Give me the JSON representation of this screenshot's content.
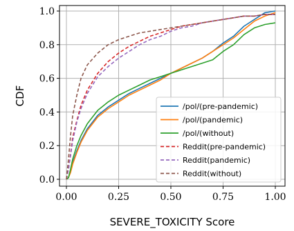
{
  "chart_data": {
    "type": "line",
    "xlabel": "SEVERE_TOXICITY Score",
    "ylabel": "CDF",
    "xlim": [
      0,
      1
    ],
    "ylim": [
      0,
      1
    ],
    "xticks": [
      "0.00",
      "0.25",
      "0.50",
      "0.75",
      "1.00"
    ],
    "yticks": [
      "0.0",
      "0.2",
      "0.4",
      "0.6",
      "0.8",
      "1.0"
    ],
    "grid": true,
    "legend_position": "lower-right",
    "series": [
      {
        "name": "/pol/(pre-pandemic)",
        "color": "#1f77b4",
        "dash": "solid",
        "points": [
          [
            0,
            0
          ],
          [
            0.01,
            0.01
          ],
          [
            0.02,
            0.05
          ],
          [
            0.03,
            0.1
          ],
          [
            0.05,
            0.17
          ],
          [
            0.07,
            0.23
          ],
          [
            0.1,
            0.3
          ],
          [
            0.15,
            0.38
          ],
          [
            0.2,
            0.43
          ],
          [
            0.25,
            0.47
          ],
          [
            0.3,
            0.51
          ],
          [
            0.35,
            0.54
          ],
          [
            0.4,
            0.57
          ],
          [
            0.45,
            0.6
          ],
          [
            0.5,
            0.63
          ],
          [
            0.55,
            0.66
          ],
          [
            0.6,
            0.69
          ],
          [
            0.65,
            0.72
          ],
          [
            0.7,
            0.76
          ],
          [
            0.75,
            0.81
          ],
          [
            0.8,
            0.85
          ],
          [
            0.85,
            0.91
          ],
          [
            0.9,
            0.95
          ],
          [
            0.95,
            0.99
          ],
          [
            1,
            1
          ]
        ]
      },
      {
        "name": "/pol/(pandemic)",
        "color": "#ff7f0e",
        "dash": "solid",
        "points": [
          [
            0,
            0
          ],
          [
            0.01,
            0.01
          ],
          [
            0.02,
            0.04
          ],
          [
            0.03,
            0.09
          ],
          [
            0.05,
            0.16
          ],
          [
            0.07,
            0.22
          ],
          [
            0.1,
            0.29
          ],
          [
            0.15,
            0.37
          ],
          [
            0.2,
            0.42
          ],
          [
            0.25,
            0.46
          ],
          [
            0.3,
            0.5
          ],
          [
            0.35,
            0.53
          ],
          [
            0.4,
            0.56
          ],
          [
            0.45,
            0.59
          ],
          [
            0.5,
            0.63
          ],
          [
            0.55,
            0.66
          ],
          [
            0.6,
            0.69
          ],
          [
            0.65,
            0.72
          ],
          [
            0.7,
            0.76
          ],
          [
            0.75,
            0.8
          ],
          [
            0.8,
            0.84
          ],
          [
            0.85,
            0.89
          ],
          [
            0.9,
            0.94
          ],
          [
            0.95,
            0.97
          ],
          [
            1,
            0.99
          ]
        ]
      },
      {
        "name": "/pol/(without)",
        "color": "#2ca02c",
        "dash": "solid",
        "points": [
          [
            0,
            0
          ],
          [
            0.01,
            0.01
          ],
          [
            0.02,
            0.06
          ],
          [
            0.03,
            0.12
          ],
          [
            0.05,
            0.2
          ],
          [
            0.07,
            0.26
          ],
          [
            0.1,
            0.33
          ],
          [
            0.15,
            0.41
          ],
          [
            0.2,
            0.46
          ],
          [
            0.25,
            0.5
          ],
          [
            0.3,
            0.53
          ],
          [
            0.35,
            0.56
          ],
          [
            0.4,
            0.59
          ],
          [
            0.45,
            0.61
          ],
          [
            0.5,
            0.63
          ],
          [
            0.55,
            0.65
          ],
          [
            0.6,
            0.67
          ],
          [
            0.65,
            0.69
          ],
          [
            0.7,
            0.71
          ],
          [
            0.75,
            0.76
          ],
          [
            0.8,
            0.8
          ],
          [
            0.85,
            0.86
          ],
          [
            0.9,
            0.9
          ],
          [
            0.95,
            0.92
          ],
          [
            1,
            0.93
          ]
        ]
      },
      {
        "name": "Reddit(pre-pandemic)",
        "color": "#d62728",
        "dash": "dashed",
        "points": [
          [
            0,
            0
          ],
          [
            0.01,
            0.06
          ],
          [
            0.02,
            0.15
          ],
          [
            0.03,
            0.25
          ],
          [
            0.05,
            0.35
          ],
          [
            0.07,
            0.44
          ],
          [
            0.1,
            0.53
          ],
          [
            0.15,
            0.63
          ],
          [
            0.2,
            0.7
          ],
          [
            0.25,
            0.75
          ],
          [
            0.3,
            0.79
          ],
          [
            0.35,
            0.82
          ],
          [
            0.4,
            0.85
          ],
          [
            0.45,
            0.87
          ],
          [
            0.5,
            0.89
          ],
          [
            0.55,
            0.91
          ],
          [
            0.6,
            0.92
          ],
          [
            0.65,
            0.93
          ],
          [
            0.7,
            0.94
          ],
          [
            0.75,
            0.95
          ],
          [
            0.8,
            0.96
          ],
          [
            0.85,
            0.97
          ],
          [
            0.9,
            0.97
          ],
          [
            0.95,
            0.98
          ],
          [
            1,
            0.98
          ]
        ]
      },
      {
        "name": "Reddit(pandemic)",
        "color": "#9467bd",
        "dash": "dashed",
        "points": [
          [
            0,
            0
          ],
          [
            0.01,
            0.06
          ],
          [
            0.02,
            0.14
          ],
          [
            0.03,
            0.23
          ],
          [
            0.05,
            0.34
          ],
          [
            0.07,
            0.42
          ],
          [
            0.1,
            0.51
          ],
          [
            0.15,
            0.61
          ],
          [
            0.2,
            0.67
          ],
          [
            0.25,
            0.72
          ],
          [
            0.3,
            0.76
          ],
          [
            0.35,
            0.8
          ],
          [
            0.4,
            0.83
          ],
          [
            0.45,
            0.85
          ],
          [
            0.5,
            0.88
          ],
          [
            0.55,
            0.9
          ],
          [
            0.6,
            0.91
          ],
          [
            0.65,
            0.93
          ],
          [
            0.7,
            0.94
          ],
          [
            0.75,
            0.95
          ],
          [
            0.8,
            0.96
          ],
          [
            0.85,
            0.97
          ],
          [
            0.9,
            0.97
          ],
          [
            0.95,
            0.98
          ],
          [
            1,
            0.98
          ]
        ]
      },
      {
        "name": "Reddit(without)",
        "color": "#8c564b",
        "dash": "dashed",
        "points": [
          [
            0,
            0
          ],
          [
            0.01,
            0.12
          ],
          [
            0.02,
            0.26
          ],
          [
            0.03,
            0.38
          ],
          [
            0.05,
            0.5
          ],
          [
            0.07,
            0.6
          ],
          [
            0.1,
            0.68
          ],
          [
            0.15,
            0.75
          ],
          [
            0.2,
            0.8
          ],
          [
            0.25,
            0.83
          ],
          [
            0.3,
            0.85
          ],
          [
            0.35,
            0.87
          ],
          [
            0.4,
            0.88
          ],
          [
            0.45,
            0.89
          ],
          [
            0.5,
            0.9
          ],
          [
            0.55,
            0.91
          ],
          [
            0.6,
            0.92
          ],
          [
            0.65,
            0.93
          ],
          [
            0.7,
            0.94
          ],
          [
            0.75,
            0.95
          ],
          [
            0.8,
            0.96
          ],
          [
            0.85,
            0.97
          ],
          [
            0.9,
            0.97
          ],
          [
            0.95,
            0.98
          ],
          [
            1,
            0.98
          ]
        ]
      }
    ]
  }
}
